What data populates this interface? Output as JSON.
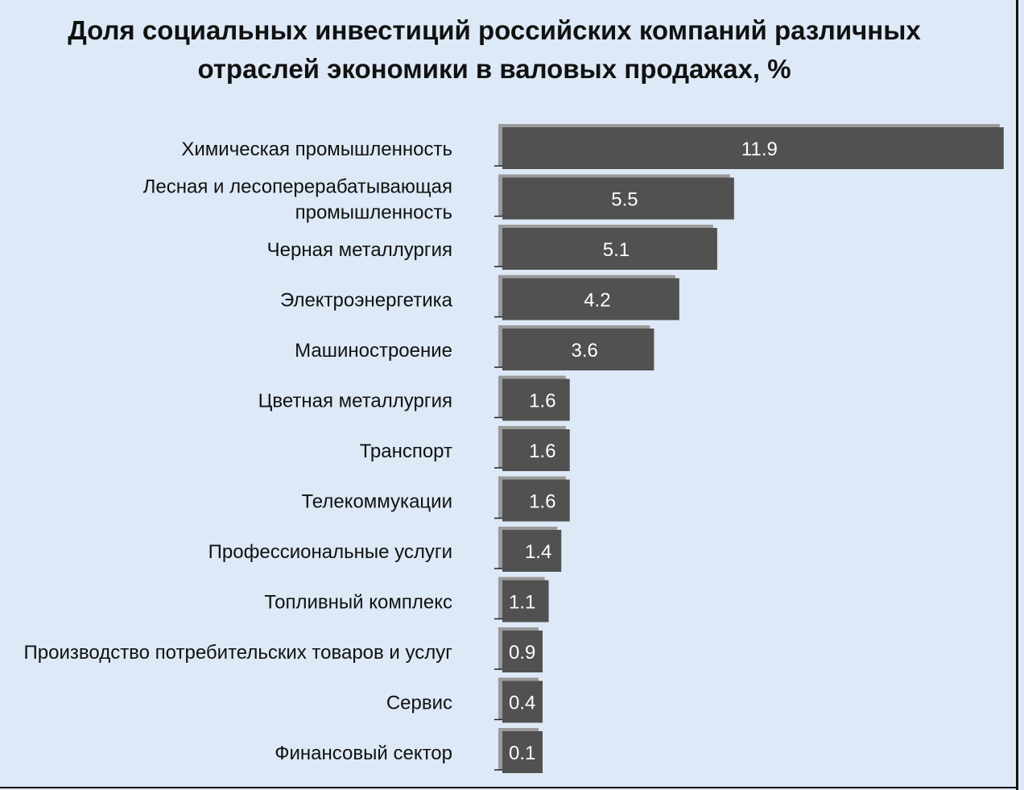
{
  "title_lines": [
    "Доля социальных инвестиций российских компаний различных",
    "отраслей экономики в валовых продажах, %"
  ],
  "colors": {
    "background": "#dde9f6",
    "bar": "#515151",
    "bar_shadow": "#9a9a9a",
    "value_text": "#ffffff"
  },
  "chart_data": {
    "type": "bar",
    "orientation": "horizontal",
    "title": "Доля социальных инвестиций российских компаний различных отраслей экономики в валовых продажах, %",
    "categories": [
      [
        "Химическая промышленность"
      ],
      [
        "Лесная и лесоперерабатывающая",
        "промышленность"
      ],
      [
        "Черная металлургия"
      ],
      [
        "Электроэнергетика"
      ],
      [
        "Машиностроение"
      ],
      [
        "Цветная металлургия"
      ],
      [
        "Транспорт"
      ],
      [
        "Телекоммукации"
      ],
      [
        "Профессиональные услуги"
      ],
      [
        "Топливный комплекс"
      ],
      [
        "Производство потребительских товаров и услуг"
      ],
      [
        "Сервис"
      ],
      [
        "Финансовый сектор"
      ]
    ],
    "values": [
      11.9,
      5.5,
      5.1,
      4.2,
      3.6,
      1.6,
      1.6,
      1.6,
      1.4,
      1.1,
      0.9,
      0.4,
      0.1
    ],
    "value_labels": [
      "11.9",
      "5.5",
      "5.1",
      "4.2",
      "3.6",
      "1.6",
      "1.6",
      "1.6",
      "1.4",
      "1.1",
      "0.9",
      "0.4",
      "0.1"
    ],
    "xlim": [
      0,
      12
    ],
    "grid": false,
    "legend": "none"
  }
}
